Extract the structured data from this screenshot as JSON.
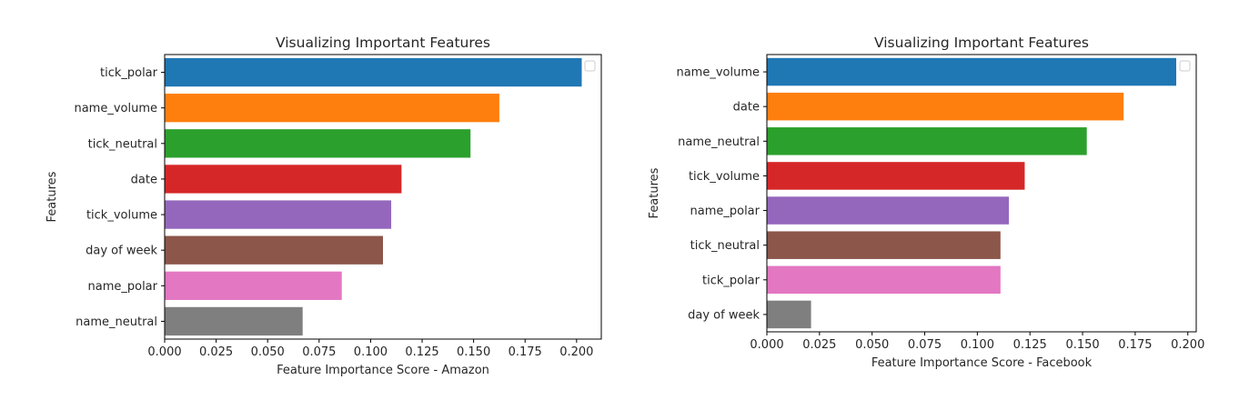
{
  "chart_data": [
    {
      "type": "bar",
      "orientation": "horizontal",
      "title": "Visualizing Important Features",
      "xlabel": "Feature Importance Score - Amazon",
      "ylabel": "Features",
      "categories": [
        "tick_polar",
        "name_volume",
        "tick_neutral",
        "date",
        "tick_volume",
        "day of week",
        "name_polar",
        "name_neutral"
      ],
      "values": [
        0.2025,
        0.1625,
        0.1485,
        0.115,
        0.11,
        0.106,
        0.086,
        0.067
      ],
      "colors": [
        "#1f77b4",
        "#ff7f0e",
        "#2ca02c",
        "#d62728",
        "#9467bd",
        "#8c564b",
        "#e377c2",
        "#7f7f7f"
      ],
      "xlim": [
        0,
        0.212
      ],
      "xticks": [
        "0.000",
        "0.025",
        "0.050",
        "0.075",
        "0.100",
        "0.125",
        "0.150",
        "0.175",
        "0.200"
      ],
      "legend": "top-right (empty)",
      "grid": false
    },
    {
      "type": "bar",
      "orientation": "horizontal",
      "title": "Visualizing Important Features",
      "xlabel": "Feature Importance Score - Facebook",
      "ylabel": "Features",
      "categories": [
        "name_volume",
        "date",
        "name_neutral",
        "tick_volume",
        "name_polar",
        "tick_neutral",
        "tick_polar",
        "day of week"
      ],
      "values": [
        0.1945,
        0.1695,
        0.152,
        0.1225,
        0.115,
        0.111,
        0.111,
        0.021
      ],
      "colors": [
        "#1f77b4",
        "#ff7f0e",
        "#2ca02c",
        "#d62728",
        "#9467bd",
        "#8c564b",
        "#e377c2",
        "#7f7f7f"
      ],
      "xlim": [
        0,
        0.204
      ],
      "xticks": [
        "0.000",
        "0.025",
        "0.050",
        "0.075",
        "0.100",
        "0.125",
        "0.150",
        "0.175",
        "0.200"
      ],
      "legend": "top-right (empty)",
      "grid": false
    }
  ]
}
